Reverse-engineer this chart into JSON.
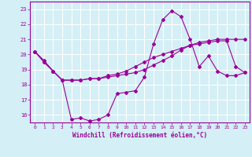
{
  "xlabel": "Windchill (Refroidissement éolien,°C)",
  "bg_color": "#d4eff5",
  "grid_color": "#ffffff",
  "line_color": "#990099",
  "ylim": [
    15.5,
    23.5
  ],
  "xlim": [
    -0.5,
    23.5
  ],
  "yticks": [
    16,
    17,
    18,
    19,
    20,
    21,
    22,
    23
  ],
  "xticks": [
    0,
    1,
    2,
    3,
    4,
    5,
    6,
    7,
    8,
    9,
    10,
    11,
    12,
    13,
    14,
    15,
    16,
    17,
    18,
    19,
    20,
    21,
    22,
    23
  ],
  "line1_x": [
    0,
    1,
    2,
    3,
    4,
    5,
    6,
    7,
    8,
    9,
    10,
    11,
    12,
    13,
    14,
    15,
    16,
    17,
    18,
    19,
    20,
    21,
    22,
    23
  ],
  "line1_y": [
    20.2,
    19.6,
    18.9,
    18.3,
    15.7,
    15.8,
    15.6,
    15.7,
    16.0,
    17.4,
    17.5,
    17.6,
    18.5,
    20.7,
    22.3,
    22.9,
    22.5,
    21.0,
    19.2,
    19.9,
    18.9,
    18.6,
    18.6,
    18.8
  ],
  "line2_x": [
    0,
    1,
    2,
    3,
    4,
    5,
    6,
    7,
    8,
    9,
    10,
    11,
    12,
    13,
    14,
    15,
    16,
    17,
    18,
    19,
    20,
    21,
    22,
    23
  ],
  "line2_y": [
    20.2,
    19.5,
    18.9,
    18.3,
    18.3,
    18.3,
    18.4,
    18.4,
    18.5,
    18.6,
    18.7,
    18.8,
    19.0,
    19.3,
    19.6,
    19.9,
    20.3,
    20.6,
    20.8,
    20.9,
    21.0,
    21.0,
    21.0,
    21.0
  ],
  "line3_x": [
    0,
    1,
    2,
    3,
    4,
    5,
    6,
    7,
    8,
    9,
    10,
    11,
    12,
    13,
    14,
    15,
    16,
    17,
    18,
    19,
    20,
    21,
    22,
    23
  ],
  "line3_y": [
    20.2,
    19.5,
    18.9,
    18.3,
    18.3,
    18.3,
    18.4,
    18.4,
    18.6,
    18.7,
    18.9,
    19.2,
    19.5,
    19.8,
    20.0,
    20.2,
    20.4,
    20.6,
    20.7,
    20.8,
    20.9,
    20.9,
    19.2,
    18.8
  ]
}
